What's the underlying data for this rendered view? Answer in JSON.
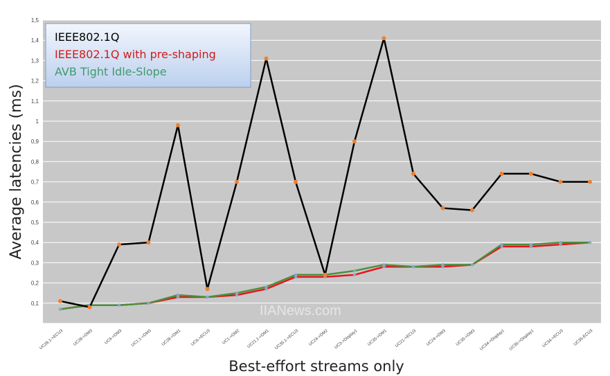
{
  "chart_data": {
    "type": "line",
    "title": "",
    "xlabel": "Best-effort streams only",
    "ylabel": "Average latencies (ms)",
    "ylim": [
      0,
      1.5
    ],
    "y_ticks": [
      "0",
      "0,1",
      "0,2",
      "0,3",
      "0,4",
      "0,5",
      "0,6",
      "0,7",
      "0,8",
      "0,9",
      "1",
      "1,1",
      "1,2",
      "1,3",
      "1,4",
      "1,5"
    ],
    "categories": [
      "UC28.1->ECU3",
      "UC28->DM3",
      "UC4->DM3",
      "UC1.1->DM3",
      "UC28->DM1",
      "UC6->ECU3",
      "UC1->DM2",
      "UC21.1->DM1",
      "UC35.1->ECU3",
      "UC24->DM2",
      "UC3->Display1",
      "UC35->DM1",
      "UC21->ECU3",
      "UC24->DM3",
      "UC35->DM3",
      "UC34->Display1",
      "UC35->Display1",
      "UC34->ECU3",
      "UC35-ECU3"
    ],
    "series": [
      {
        "name": "IEEE802.1Q",
        "color": "#000000",
        "values": [
          0.11,
          0.08,
          0.39,
          0.4,
          0.98,
          0.17,
          0.7,
          1.31,
          0.7,
          0.24,
          0.9,
          1.41,
          0.74,
          0.57,
          0.56,
          0.74,
          0.74,
          0.7,
          0.7
        ]
      },
      {
        "name": "IEEE802.1Q with pre-shaping",
        "color": "#e8131b",
        "values": [
          0.07,
          0.09,
          0.09,
          0.1,
          0.13,
          0.13,
          0.14,
          0.17,
          0.23,
          0.23,
          0.24,
          0.28,
          0.28,
          0.28,
          0.29,
          0.38,
          0.38,
          0.39,
          0.4
        ]
      },
      {
        "name": "AVB Tight Idle-Slope",
        "color": "#4b8f3c",
        "values": [
          0.07,
          0.09,
          0.09,
          0.1,
          0.14,
          0.13,
          0.15,
          0.18,
          0.24,
          0.24,
          0.26,
          0.29,
          0.28,
          0.29,
          0.29,
          0.39,
          0.39,
          0.4,
          0.4
        ]
      }
    ],
    "marker_color": "#f08030",
    "background": "#c8c8c8",
    "grid": true,
    "legend_position": "top-left",
    "watermark": "IIANews.com"
  }
}
